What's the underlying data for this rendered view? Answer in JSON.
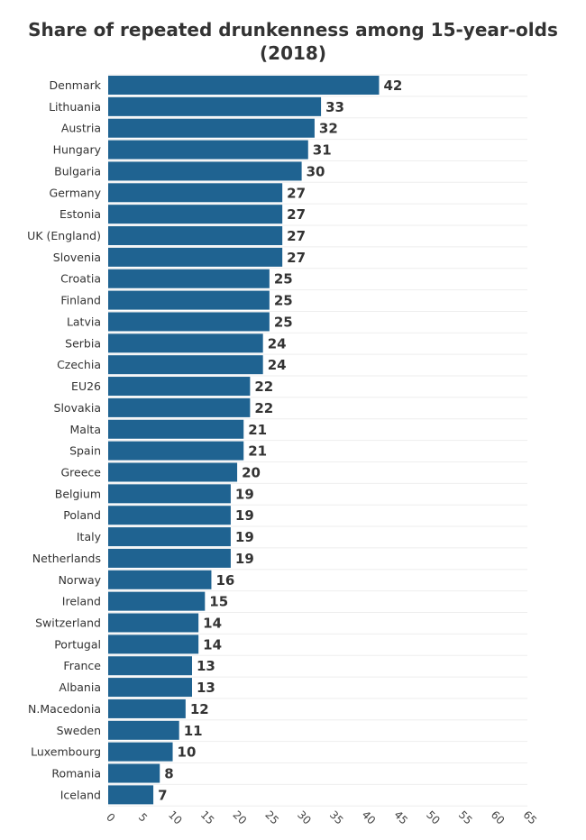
{
  "chart_data": {
    "type": "bar",
    "orientation": "horizontal",
    "title": "Share of repeated drunkenness among 15-year-olds (2018)",
    "title_lines": [
      "Share of repeated drunkenness among 15-year-olds",
      "(2018)"
    ],
    "categories": [
      "Denmark",
      "Lithuania",
      "Austria",
      "Hungary",
      "Bulgaria",
      "Germany",
      "Estonia",
      "UK (England)",
      "Slovenia",
      "Croatia",
      "Finland",
      "Latvia",
      "Serbia",
      "Czechia",
      "EU26",
      "Slovakia",
      "Malta",
      "Spain",
      "Greece",
      "Belgium",
      "Poland",
      "Italy",
      "Netherlands",
      "Norway",
      "Ireland",
      "Switzerland",
      "Portugal",
      "France",
      "Albania",
      "N.Macedonia",
      "Sweden",
      "Luxembourg",
      "Romania",
      "Iceland"
    ],
    "values": [
      42,
      33,
      32,
      31,
      30,
      27,
      27,
      27,
      27,
      25,
      25,
      25,
      24,
      24,
      22,
      22,
      21,
      21,
      20,
      19,
      19,
      19,
      19,
      16,
      15,
      14,
      14,
      13,
      13,
      12,
      11,
      10,
      8,
      7
    ],
    "xlim": [
      0,
      65
    ],
    "xticks": [
      0,
      5,
      10,
      15,
      20,
      25,
      30,
      35,
      40,
      45,
      50,
      55,
      60,
      65
    ],
    "bar_color": "#1f6391",
    "grid": true,
    "legend": "none"
  }
}
